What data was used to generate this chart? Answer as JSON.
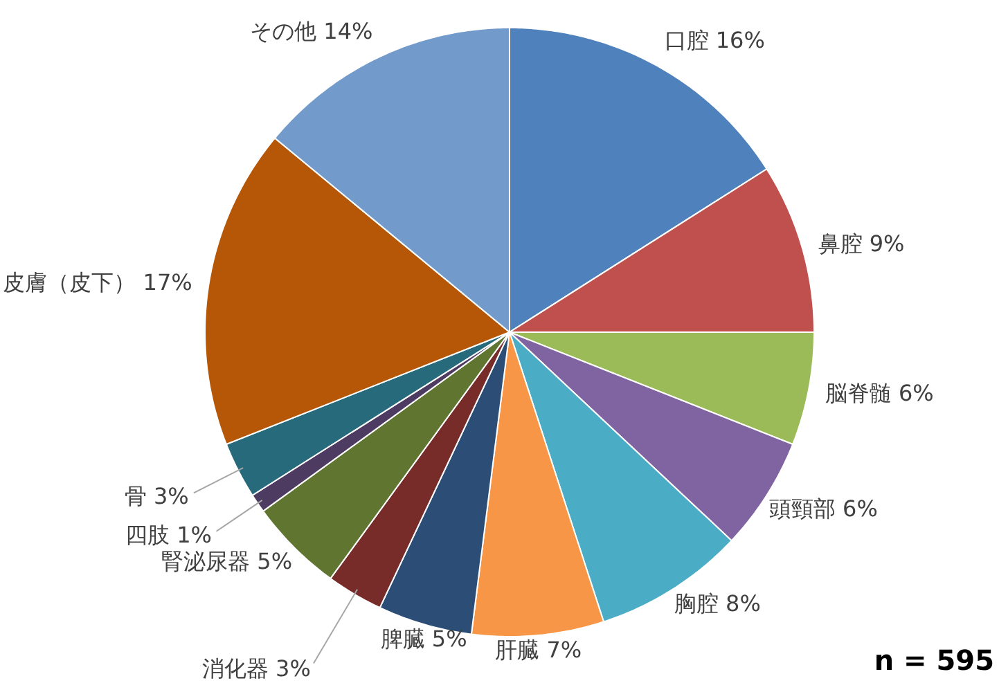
{
  "chart_data": {
    "type": "pie",
    "categories": [
      "口腔",
      "鼻腔",
      "脳脊髄",
      "頭頸部",
      "胸腔",
      "肝臓",
      "脾臓",
      "消化器",
      "腎泌尿器",
      "四肢",
      "骨",
      "皮膚（皮下）",
      "その他"
    ],
    "values": [
      16,
      9,
      6,
      6,
      8,
      7,
      5,
      3,
      5,
      1,
      3,
      17,
      14
    ],
    "value_labels": [
      "16%",
      "9%",
      "6%",
      "6%",
      "8%",
      "7%",
      "5%",
      "3%",
      "5%",
      "1%",
      "3%",
      "17%",
      "14%"
    ],
    "colors": [
      "#4f81bd",
      "#c0504d",
      "#9bbb59",
      "#8064a2",
      "#4bacc6",
      "#f79646",
      "#2c4d75",
      "#772c2a",
      "#5f7530",
      "#4d3b62",
      "#276a7c",
      "#b65708",
      "#729aca"
    ],
    "annotations": [
      "n = 595"
    ]
  }
}
